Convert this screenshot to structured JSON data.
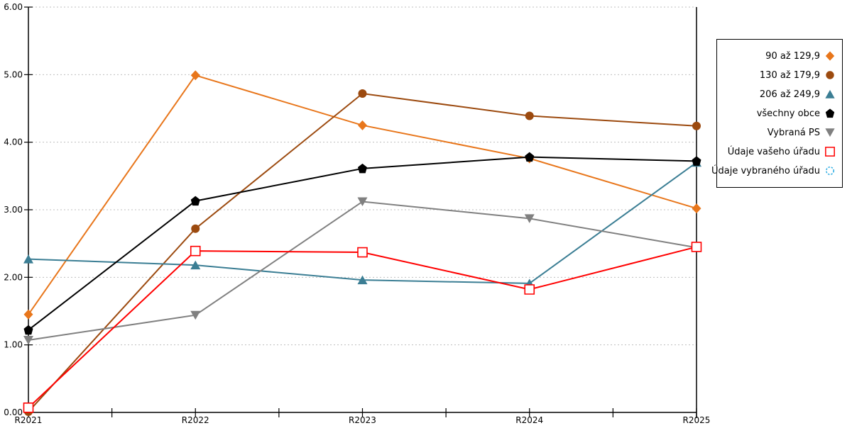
{
  "chart_data": {
    "type": "line",
    "title": "",
    "xlabel": "",
    "ylabel": "",
    "categories": [
      "R2021",
      "R2022",
      "R2023",
      "R2024",
      "R2025"
    ],
    "series": [
      {
        "name": "90 až 129,9",
        "marker": "diamond",
        "color": "#E8761B",
        "values": [
          1.45,
          4.99,
          4.25,
          3.76,
          3.02
        ]
      },
      {
        "name": "130 až 179,9",
        "marker": "circle",
        "color": "#9C4A0F",
        "values": [
          0.01,
          2.72,
          4.72,
          4.39,
          4.24
        ]
      },
      {
        "name": "206 až 249,9",
        "marker": "triangle-up",
        "color": "#3B7E94",
        "values": [
          2.27,
          2.18,
          1.96,
          1.91,
          3.7
        ]
      },
      {
        "name": "všechny obce",
        "marker": "pentagon",
        "color": "#000000",
        "values": [
          1.22,
          3.13,
          3.61,
          3.78,
          3.72
        ]
      },
      {
        "name": "Vybraná PS",
        "marker": "triangle-down",
        "color": "#808080",
        "values": [
          1.07,
          1.44,
          3.12,
          2.87,
          2.44
        ]
      },
      {
        "name": "Údaje vašeho úřadu",
        "marker": "square-open",
        "color": "#FF0000",
        "values": [
          0.07,
          2.39,
          2.37,
          1.82,
          2.45
        ]
      },
      {
        "name": "Údaje vybraného úřadu",
        "marker": "circle-open-dashed",
        "color": "#29ABE2",
        "values": []
      }
    ],
    "ylim": [
      0,
      6
    ],
    "ytick_step": 1,
    "y_tick_labels": [
      "0.00",
      "1.00",
      "2.00",
      "3.00",
      "4.00",
      "5.00",
      "6.00"
    ],
    "grid": "horizontal-dotted",
    "grid_color": "#BFBFBF",
    "axis_color": "#000000",
    "legend_position": "top-right"
  }
}
